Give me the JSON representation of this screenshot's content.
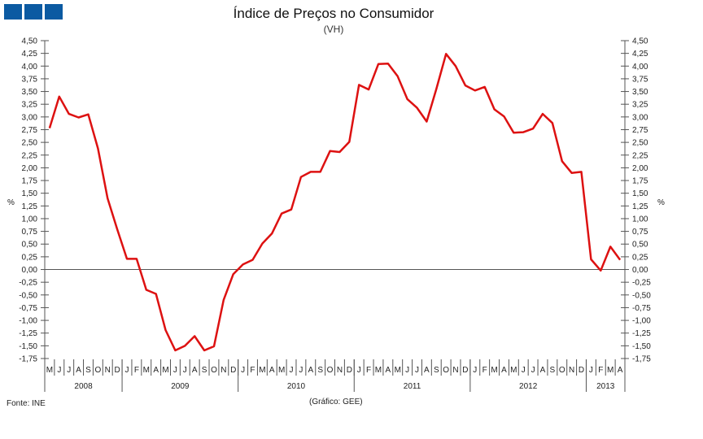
{
  "chart_data": {
    "type": "line",
    "title": "Índice de Preços no Consumidor",
    "subtitle": "(VH)",
    "ylabel_left": "%",
    "ylabel_right": "%",
    "ylim": [
      -1.75,
      4.5
    ],
    "ytick_step": 0.25,
    "grid": false,
    "months": [
      "M",
      "J",
      "J",
      "A",
      "S",
      "O",
      "N",
      "D",
      "J",
      "F",
      "M",
      "A",
      "M",
      "J",
      "J",
      "A",
      "S",
      "O",
      "N",
      "D",
      "J",
      "F",
      "M",
      "A",
      "M",
      "J",
      "J",
      "A",
      "S",
      "O",
      "N",
      "D",
      "J",
      "F",
      "M",
      "A",
      "M",
      "J",
      "J",
      "A",
      "S",
      "O",
      "N",
      "D",
      "J",
      "F",
      "M",
      "A",
      "M",
      "J",
      "J",
      "A",
      "S",
      "O",
      "N",
      "D",
      "J",
      "F",
      "M",
      "A"
    ],
    "years": [
      {
        "label": "2008",
        "count": 8
      },
      {
        "label": "2009",
        "count": 12
      },
      {
        "label": "2010",
        "count": 12
      },
      {
        "label": "2011",
        "count": 12
      },
      {
        "label": "2012",
        "count": 12
      },
      {
        "label": "2013",
        "count": 4
      }
    ],
    "series": [
      {
        "color": "#dd1111",
        "values": [
          2.78,
          3.4,
          3.06,
          2.99,
          3.05,
          2.38,
          1.4,
          0.79,
          0.21,
          0.21,
          -0.4,
          -0.48,
          -1.19,
          -1.59,
          -1.5,
          -1.31,
          -1.59,
          -1.51,
          -0.6,
          -0.09,
          0.1,
          0.19,
          0.51,
          0.71,
          1.1,
          1.18,
          1.82,
          1.92,
          1.92,
          2.33,
          2.31,
          2.51,
          3.63,
          3.54,
          4.04,
          4.05,
          3.8,
          3.35,
          3.18,
          2.91,
          3.55,
          4.24,
          4.0,
          3.62,
          3.52,
          3.59,
          3.15,
          3.01,
          2.69,
          2.7,
          2.77,
          3.06,
          2.88,
          2.13,
          1.9,
          1.92,
          0.2,
          -0.02,
          0.45,
          0.19
        ]
      }
    ]
  },
  "header": {
    "logo_color": "#0b5aa2"
  },
  "footer": {
    "source": "Fonte:  INE",
    "credit": "(Gráfico:  GEE)"
  }
}
